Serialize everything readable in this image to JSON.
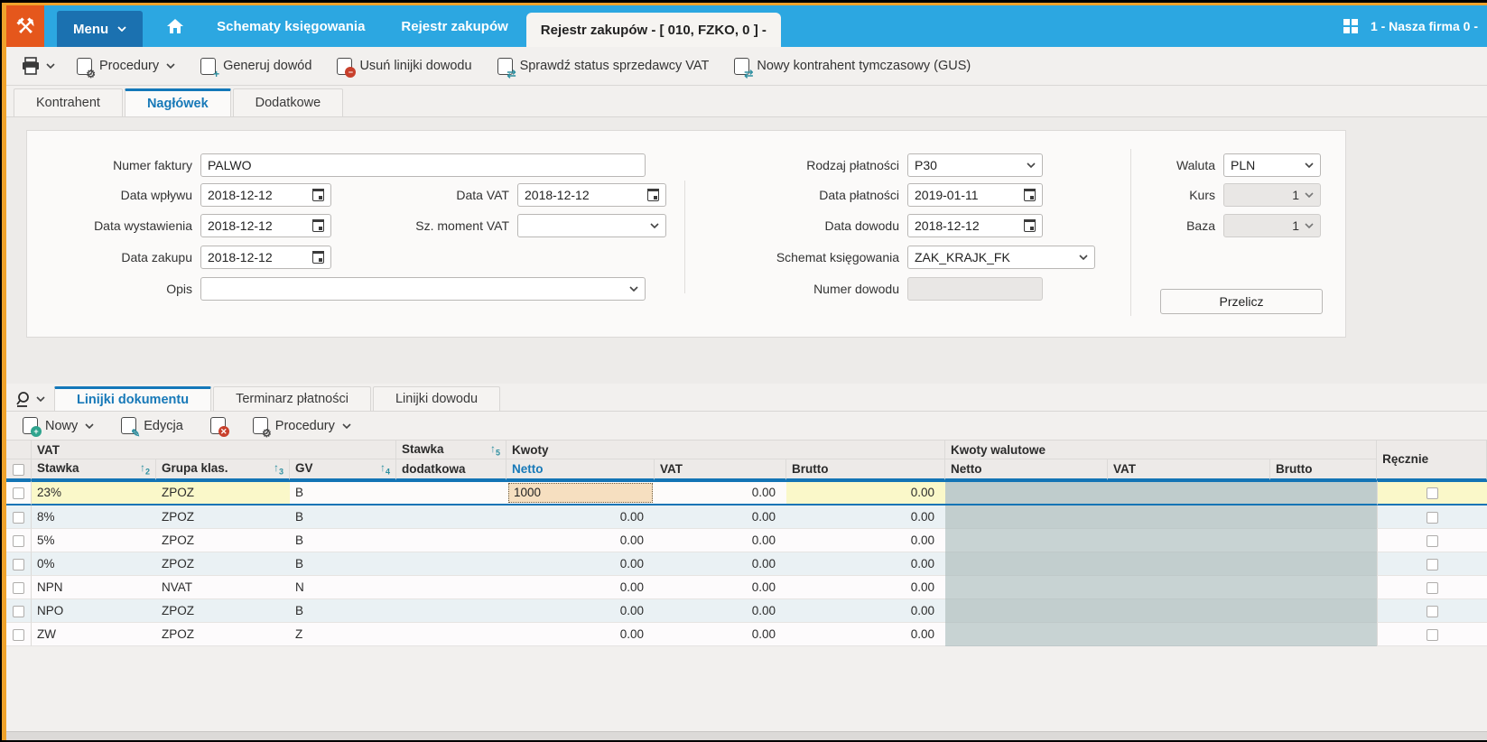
{
  "app": {
    "company_label": "1 - Nasza firma 0 -"
  },
  "topbar": {
    "menu": "Menu",
    "tabs": [
      {
        "label": "Schematy księgowania"
      },
      {
        "label": "Rejestr zakupów"
      },
      {
        "label": "Rejestr zakupów - [ 010, FZKO, 0 ] -"
      }
    ]
  },
  "toolbar": {
    "procedury": "Procedury",
    "generuj_dowod": "Generuj dowód",
    "usun_linijki": "Usuń linijki dowodu",
    "sprawdz_vat": "Sprawdź status sprzedawcy VAT",
    "nowy_kontrahent": "Nowy kontrahent tymczasowy (GUS)"
  },
  "header_tabs": {
    "items": [
      "Kontrahent",
      "Nagłówek",
      "Dodatkowe"
    ]
  },
  "form": {
    "numer_faktury": {
      "label": "Numer faktury",
      "value": "PALWO"
    },
    "data_wplywu": {
      "label": "Data wpływu",
      "value": "2018-12-12"
    },
    "data_wystawienia": {
      "label": "Data wystawienia",
      "value": "2018-12-12"
    },
    "data_zakupu": {
      "label": "Data zakupu",
      "value": "2018-12-12"
    },
    "opis": {
      "label": "Opis",
      "value": ""
    },
    "data_vat": {
      "label": "Data VAT",
      "value": "2018-12-12"
    },
    "sz_moment_vat": {
      "label": "Sz. moment VAT",
      "value": ""
    },
    "rodzaj_platnosci": {
      "label": "Rodzaj płatności",
      "value": "P30"
    },
    "data_platnosci": {
      "label": "Data płatności",
      "value": "2019-01-11"
    },
    "data_dowodu": {
      "label": "Data dowodu",
      "value": "2018-12-12"
    },
    "schemat_ksiegowania": {
      "label": "Schemat księgowania",
      "value": "ZAK_KRAJK_FK"
    },
    "numer_dowodu": {
      "label": "Numer dowodu",
      "value": ""
    },
    "waluta": {
      "label": "Waluta",
      "value": "PLN"
    },
    "kurs": {
      "label": "Kurs",
      "value": "1"
    },
    "baza": {
      "label": "Baza",
      "value": "1"
    },
    "przelicz": "Przelicz"
  },
  "lines": {
    "tabs": [
      "Linijki dokumentu",
      "Terminarz płatności",
      "Linijki dowodu"
    ],
    "toolbar": {
      "nowy": "Nowy",
      "edycja": "Edycja",
      "procedury": "Procedury"
    },
    "table": {
      "group_vat": "VAT",
      "group_kwoty": "Kwoty",
      "group_walutowe": "Kwoty walutowe",
      "col_recznie": "Ręcznie",
      "col_stawka_dod_line1": "Stawka",
      "col_stawka_dod_line2": "dodatkowa",
      "col_stawka": "Stawka",
      "col_grupa": "Grupa klas.",
      "col_gv": "GV",
      "col_netto": "Netto",
      "col_vat": "VAT",
      "col_brutto": "Brutto",
      "col_w_netto": "Netto",
      "col_w_vat": "VAT",
      "col_w_brutto": "Brutto",
      "sort": {
        "stawka": "2",
        "grupa": "3",
        "gv": "4",
        "dodatkowa": "5"
      },
      "rows": [
        {
          "stawka": "23%",
          "grupa": "ZPOZ",
          "gv": "B",
          "dodatkowa": "",
          "netto": "1000",
          "vat": "0.00",
          "brutto": "0.00",
          "selected": true,
          "editing": true
        },
        {
          "stawka": "8%",
          "grupa": "ZPOZ",
          "gv": "B",
          "dodatkowa": "",
          "netto": "0.00",
          "vat": "0.00",
          "brutto": "0.00"
        },
        {
          "stawka": "5%",
          "grupa": "ZPOZ",
          "gv": "B",
          "dodatkowa": "",
          "netto": "0.00",
          "vat": "0.00",
          "brutto": "0.00"
        },
        {
          "stawka": "0%",
          "grupa": "ZPOZ",
          "gv": "B",
          "dodatkowa": "",
          "netto": "0.00",
          "vat": "0.00",
          "brutto": "0.00"
        },
        {
          "stawka": "NPN",
          "grupa": "NVAT",
          "gv": "N",
          "dodatkowa": "",
          "netto": "0.00",
          "vat": "0.00",
          "brutto": "0.00"
        },
        {
          "stawka": "NPO",
          "grupa": "ZPOZ",
          "gv": "B",
          "dodatkowa": "",
          "netto": "0.00",
          "vat": "0.00",
          "brutto": "0.00"
        },
        {
          "stawka": "ZW",
          "grupa": "ZPOZ",
          "gv": "Z",
          "dodatkowa": "",
          "netto": "0.00",
          "vat": "0.00",
          "brutto": "0.00"
        }
      ]
    }
  }
}
